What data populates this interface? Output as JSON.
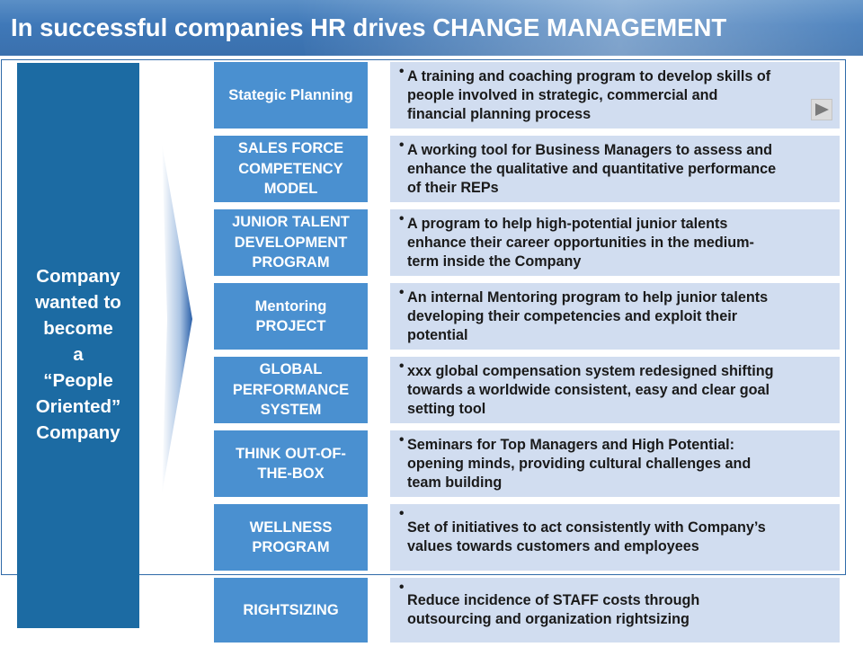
{
  "title": "In successful companies HR drives CHANGE MANAGEMENT",
  "left_panel": {
    "text": "Company\nwanted to\nbecome\na\n“People\nOriented”\nCompany"
  },
  "rows": [
    {
      "label": "Stategic Planning",
      "description": "A training and coaching program to develop skills of\npeople involved in strategic, commercial and\nfinancial planning process"
    },
    {
      "label": "SALES FORCE\nCOMPETENCY\nMODEL",
      "description": "A working tool for Business Managers to assess and\nenhance the qualitative and quantitative performance\nof their REPs"
    },
    {
      "label": "JUNIOR TALENT\nDEVELOPMENT\nPROGRAM",
      "description": "A program to help high-potential junior talents\nenhance their career opportunities in the medium-\nterm inside the Company"
    },
    {
      "label": "Mentoring\nPROJECT",
      "description": "An internal Mentoring program to help junior talents\ndeveloping  their competencies and exploit their\npotential"
    },
    {
      "label": "GLOBAL\nPERFORMANCE\nSYSTEM",
      "description": "xxx global compensation system redesigned shifting\ntowards a worldwide consistent, easy and clear goal\nsetting tool"
    },
    {
      "label": "THINK OUT-OF-\nTHE-BOX",
      "description": "Seminars for Top Managers and High Potential:\nopening minds, providing cultural challenges and\nteam building"
    },
    {
      "label": "WELLNESS\nPROGRAM",
      "description": "Set of initiatives to act consistently with Company’s\nvalues towards customers and employees"
    },
    {
      "label": "RIGHTSIZING",
      "description": "Reduce incidence of STAFF costs through\noutsourcing and organization rightsizing"
    }
  ],
  "bullet_char": "•",
  "icons": {
    "play": "play-icon"
  },
  "colors": {
    "title_bar": "#3f78b8",
    "left_panel": "#1c6ba3",
    "label_box": "#4a90d0",
    "desc_box": "#d1ddf0"
  }
}
